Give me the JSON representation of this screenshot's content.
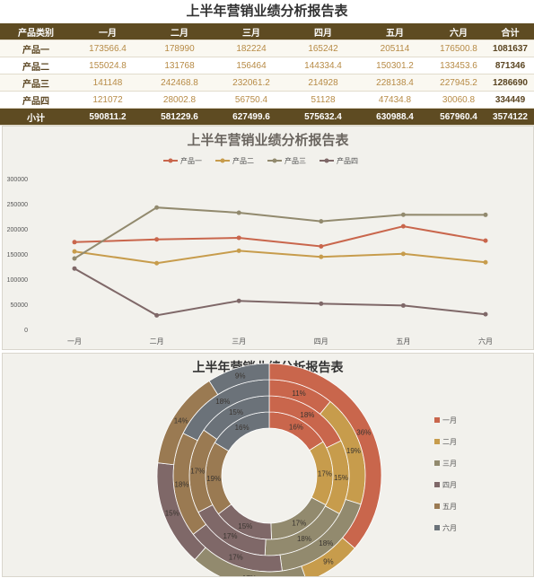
{
  "page_title": "上半年营销业绩分析报告表",
  "table": {
    "headers": [
      "产品类别",
      "一月",
      "二月",
      "三月",
      "四月",
      "五月",
      "六月",
      "合计"
    ],
    "rows": [
      {
        "category": "产品一",
        "values": [
          "173566.4",
          "178990",
          "182224",
          "165242",
          "205114",
          "176500.8"
        ],
        "total": "1081637"
      },
      {
        "category": "产品二",
        "values": [
          "155024.8",
          "131768",
          "156464",
          "144334.4",
          "150301.2",
          "133453.6"
        ],
        "total": "871346"
      },
      {
        "category": "产品三",
        "values": [
          "141148",
          "242468.8",
          "232061.2",
          "214928",
          "228138.4",
          "227945.2"
        ],
        "total": "1286690"
      },
      {
        "category": "产品四",
        "values": [
          "121072",
          "28002.8",
          "56750.4",
          "51128",
          "47434.8",
          "30060.8"
        ],
        "total": "334449"
      }
    ],
    "subtotal": {
      "label": "小计",
      "values": [
        "590811.2",
        "581229.6",
        "627499.6",
        "575632.4",
        "630988.4",
        "567960.4"
      ],
      "total": "3574122"
    }
  },
  "chart_data": [
    {
      "type": "line",
      "title": "上半年营销业绩分析报告表",
      "categories": [
        "一月",
        "二月",
        "三月",
        "四月",
        "五月",
        "六月"
      ],
      "series": [
        {
          "name": "产品一",
          "color": "#c9664c",
          "values": [
            173566.4,
            178990,
            182224,
            165242,
            205114,
            176500.8
          ]
        },
        {
          "name": "产品二",
          "color": "#c79c4c",
          "values": [
            155024.8,
            131768,
            156464,
            144334.4,
            150301.2,
            133453.6
          ]
        },
        {
          "name": "产品三",
          "color": "#928a6e",
          "values": [
            141148,
            242468.8,
            232061.2,
            214928,
            228138.4,
            227945.2
          ]
        },
        {
          "name": "产品四",
          "color": "#7f6868",
          "values": [
            121072,
            28002.8,
            56750.4,
            51128,
            47434.8,
            30060.8
          ]
        }
      ],
      "ylim": [
        0,
        300000
      ],
      "yticks": [
        0,
        50000,
        100000,
        150000,
        200000,
        250000,
        300000
      ],
      "legend": "top"
    },
    {
      "type": "pie",
      "subtype": "multi-ring doughnut",
      "title": "上半年营销业绩分析报告表",
      "categories": [
        "一月",
        "二月",
        "三月",
        "四月",
        "五月",
        "六月"
      ],
      "colors": [
        "#c9664c",
        "#c79c4c",
        "#928a6e",
        "#7f6868",
        "#9a7a52",
        "#6b7279"
      ],
      "rings": [
        {
          "series": "产品一",
          "values": [
            173566.4,
            178990,
            182224,
            165242,
            205114,
            176500.8
          ],
          "labels": [
            "16%",
            "17%",
            "17%",
            "15%",
            "19%",
            "16%"
          ]
        },
        {
          "series": "产品二",
          "values": [
            155024.8,
            131768,
            156464,
            144334.4,
            150301.2,
            133453.6
          ],
          "labels": [
            "18%",
            "15%",
            "18%",
            "17%",
            "17%",
            "15%"
          ]
        },
        {
          "series": "产品三",
          "values": [
            141148,
            242468.8,
            232061.2,
            214928,
            228138.4,
            227945.2
          ],
          "labels": [
            "11%",
            "19%",
            "18%",
            "17%",
            "18%",
            "18%"
          ]
        },
        {
          "series": "产品四",
          "values": [
            121072,
            28002.8,
            56750.4,
            51128,
            47434.8,
            30060.8
          ],
          "labels": [
            "36%",
            "9%",
            "17%",
            "15%",
            "14%",
            "9%"
          ]
        }
      ],
      "legend": "right"
    }
  ]
}
